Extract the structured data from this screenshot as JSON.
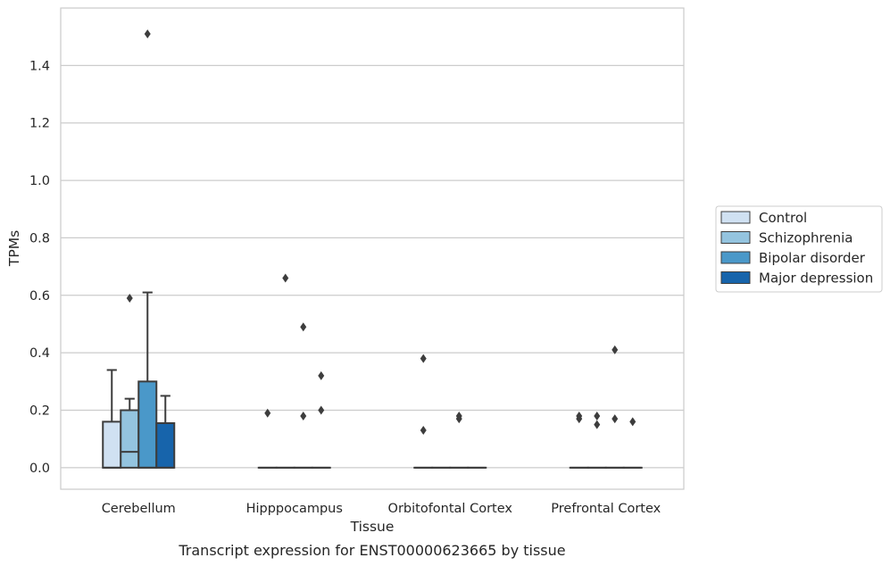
{
  "chart_data": {
    "type": "box",
    "title": "",
    "xlabel": "Tissue",
    "ylabel": "TPMs",
    "caption": "Transcript expression for ENST00000623665 by tissue",
    "ylim": [
      -0.075,
      1.6
    ],
    "yticks": [
      0.0,
      0.2,
      0.4,
      0.6,
      0.8,
      1.0,
      1.2,
      1.4
    ],
    "ytick_labels": [
      "0.0",
      "0.2",
      "0.4",
      "0.6",
      "0.8",
      "1.0",
      "1.2",
      "1.4"
    ],
    "grid": "horizontal",
    "legend_position": "right",
    "categories": [
      "Cerebellum",
      "Hipppocampus",
      "Orbitofontal Cortex",
      "Prefrontal Cortex"
    ],
    "series": [
      {
        "name": "Control",
        "color": "#d0e1f2",
        "boxes": [
          {
            "q1": 0.0,
            "median": 0.0,
            "q3": 0.16,
            "whisker_low": 0.0,
            "whisker_high": 0.34,
            "outliers": []
          },
          {
            "q1": 0.0,
            "median": 0.0,
            "q3": 0.0,
            "whisker_low": 0.0,
            "whisker_high": 0.0,
            "outliers": [
              0.19
            ]
          },
          {
            "q1": 0.0,
            "median": 0.0,
            "q3": 0.0,
            "whisker_low": 0.0,
            "whisker_high": 0.0,
            "outliers": [
              0.38,
              0.13
            ]
          },
          {
            "q1": 0.0,
            "median": 0.0,
            "q3": 0.0,
            "whisker_low": 0.0,
            "whisker_high": 0.0,
            "outliers": [
              0.18,
              0.17
            ]
          }
        ]
      },
      {
        "name": "Schizophrenia",
        "color": "#94c4df",
        "boxes": [
          {
            "q1": 0.0,
            "median": 0.055,
            "q3": 0.2,
            "whisker_low": 0.0,
            "whisker_high": 0.24,
            "outliers": [
              0.59
            ]
          },
          {
            "q1": 0.0,
            "median": 0.0,
            "q3": 0.0,
            "whisker_low": 0.0,
            "whisker_high": 0.0,
            "outliers": [
              0.66
            ]
          },
          {
            "q1": 0.0,
            "median": 0.0,
            "q3": 0.0,
            "whisker_low": 0.0,
            "whisker_high": 0.0,
            "outliers": []
          },
          {
            "q1": 0.0,
            "median": 0.0,
            "q3": 0.0,
            "whisker_low": 0.0,
            "whisker_high": 0.0,
            "outliers": [
              0.18,
              0.15
            ]
          }
        ]
      },
      {
        "name": "Bipolar disorder",
        "color": "#4a98c9",
        "boxes": [
          {
            "q1": 0.0,
            "median": 0.0,
            "q3": 0.3,
            "whisker_low": 0.0,
            "whisker_high": 0.61,
            "outliers": [
              1.51
            ]
          },
          {
            "q1": 0.0,
            "median": 0.0,
            "q3": 0.0,
            "whisker_low": 0.0,
            "whisker_high": 0.0,
            "outliers": [
              0.49,
              0.18
            ]
          },
          {
            "q1": 0.0,
            "median": 0.0,
            "q3": 0.0,
            "whisker_low": 0.0,
            "whisker_high": 0.0,
            "outliers": [
              0.18,
              0.17
            ]
          },
          {
            "q1": 0.0,
            "median": 0.0,
            "q3": 0.0,
            "whisker_low": 0.0,
            "whisker_high": 0.0,
            "outliers": [
              0.41,
              0.17
            ]
          }
        ]
      },
      {
        "name": "Major depression",
        "color": "#1764ab",
        "boxes": [
          {
            "q1": 0.0,
            "median": 0.0,
            "q3": 0.155,
            "whisker_low": 0.0,
            "whisker_high": 0.25,
            "outliers": []
          },
          {
            "q1": 0.0,
            "median": 0.0,
            "q3": 0.0,
            "whisker_low": 0.0,
            "whisker_high": 0.0,
            "outliers": [
              0.32,
              0.2
            ]
          },
          {
            "q1": 0.0,
            "median": 0.0,
            "q3": 0.0,
            "whisker_low": 0.0,
            "whisker_high": 0.0,
            "outliers": []
          },
          {
            "q1": 0.0,
            "median": 0.0,
            "q3": 0.0,
            "whisker_low": 0.0,
            "whisker_high": 0.0,
            "outliers": [
              0.16
            ]
          }
        ]
      }
    ]
  }
}
